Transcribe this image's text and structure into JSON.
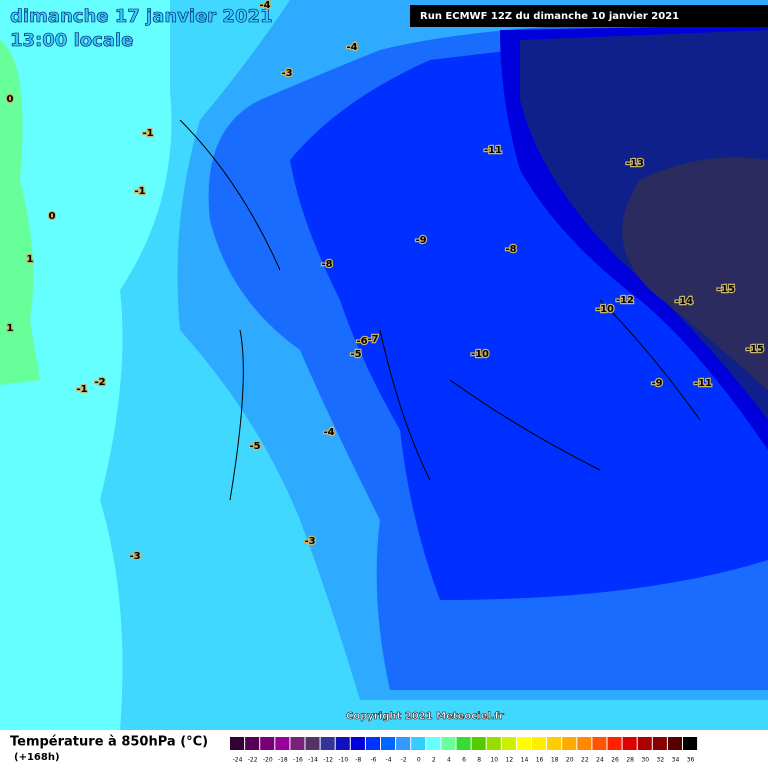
{
  "header": {
    "date": "dimanche 17 janvier 2021",
    "time": "13:00 locale",
    "run": "Run ECMWF 12Z du dimanche 10 janvier 2021"
  },
  "map": {
    "contour_labels": [
      -4,
      -4,
      -3,
      0,
      -1,
      -1,
      0,
      1,
      1,
      -1,
      -2,
      -11,
      -13,
      -9,
      -8,
      -8,
      -12,
      -10,
      -14,
      -15,
      -15,
      -7,
      -6,
      -5,
      -10,
      -9,
      -11,
      -5,
      -4,
      -3,
      -3
    ]
  },
  "footer": {
    "title": "Température à 850hPa (°C)",
    "lead": "(+168h)",
    "copyright": "Copyright 2021 Meteociel.fr"
  },
  "colorbar": {
    "ticks": [
      -24,
      -22,
      -20,
      -18,
      -16,
      -14,
      -12,
      -10,
      -8,
      -6,
      -4,
      -2,
      0,
      2,
      4,
      6,
      8,
      10,
      12,
      14,
      16,
      18,
      20,
      22,
      24,
      26,
      28,
      30,
      32,
      34,
      36
    ],
    "colors": [
      "#330033",
      "#550055",
      "#770077",
      "#990099",
      "#772277",
      "#553366",
      "#333399",
      "#1111bb",
      "#0000dd",
      "#0033ff",
      "#0066ff",
      "#3399ff",
      "#33ccff",
      "#66ffff",
      "#66ff99",
      "#33dd33",
      "#55cc00",
      "#99dd00",
      "#ccee00",
      "#ffff00",
      "#ffee00",
      "#ffcc00",
      "#ffaa00",
      "#ff8800",
      "#ff5500",
      "#ff2200",
      "#dd0000",
      "#aa0000",
      "#880000",
      "#550000",
      "#000000"
    ]
  }
}
